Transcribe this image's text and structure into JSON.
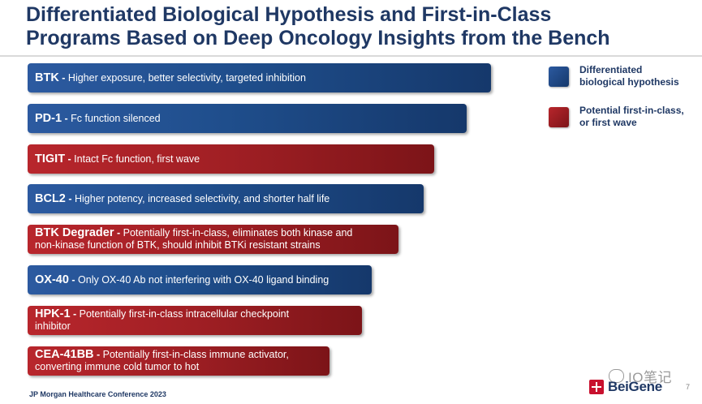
{
  "title": {
    "line1": "Differentiated Biological Hypothesis and First-in-Class",
    "line2": "Programs Based on Deep Oncology Insights from the Bench"
  },
  "programs": [
    {
      "name": "BTK",
      "sep": " - ",
      "desc1": "Higher exposure, better selectivity, targeted inhibition",
      "desc2": "",
      "category": "Differentiated biological hypothesis",
      "color": "#1f4e8c"
    },
    {
      "name": "PD-1",
      "sep": " - ",
      "desc1": "Fc function silenced",
      "desc2": "",
      "category": "Differentiated biological hypothesis",
      "color": "#1f4e8c"
    },
    {
      "name": "TIGIT",
      "sep": " - ",
      "desc1": "Intact Fc function, first wave",
      "desc2": "",
      "category": "Potential first-in-class, or first wave",
      "color": "#a01f24"
    },
    {
      "name": "BCL2",
      "sep": " - ",
      "desc1": "Higher potency, increased selectivity, and shorter half life",
      "desc2": "",
      "category": "Differentiated biological hypothesis",
      "color": "#1f4e8c"
    },
    {
      "name": "BTK Degrader",
      "sep": " - ",
      "desc1": "Potentially first-in-class, eliminates both kinase and",
      "desc2": "non-kinase function of BTK, should inhibit BTKi resistant strains",
      "category": "Potential first-in-class, or first wave",
      "color": "#a01f24"
    },
    {
      "name": "OX-40",
      "sep": " - ",
      "desc1": "Only OX-40 Ab not interfering with OX-40 ligand binding",
      "desc2": "",
      "category": "Differentiated biological hypothesis",
      "color": "#1f4e8c"
    },
    {
      "name": "HPK-1",
      "sep": " - ",
      "desc1": "Potentially first-in-class intracellular checkpoint",
      "desc2": "inhibitor",
      "category": "Potential first-in-class, or first wave",
      "color": "#a01f24"
    },
    {
      "name": "CEA-41BB",
      "sep": " - ",
      "desc1": "Potentially first-in-class immune activator,",
      "desc2": "converting immune cold tumor to hot",
      "category": "Potential first-in-class, or first wave",
      "color": "#a01f24"
    }
  ],
  "legend": [
    {
      "line1": "Differentiated",
      "line2": "biological hypothesis",
      "color": "#1f4e8c"
    },
    {
      "line1": "Potential first-in-class,",
      "line2": "or first wave",
      "color": "#a01f24"
    }
  ],
  "footer": {
    "conference": "JP Morgan Healthcare Conference 2023",
    "page_number": "7",
    "watermark": "IO笔记",
    "logo_text": "BeiGene"
  }
}
